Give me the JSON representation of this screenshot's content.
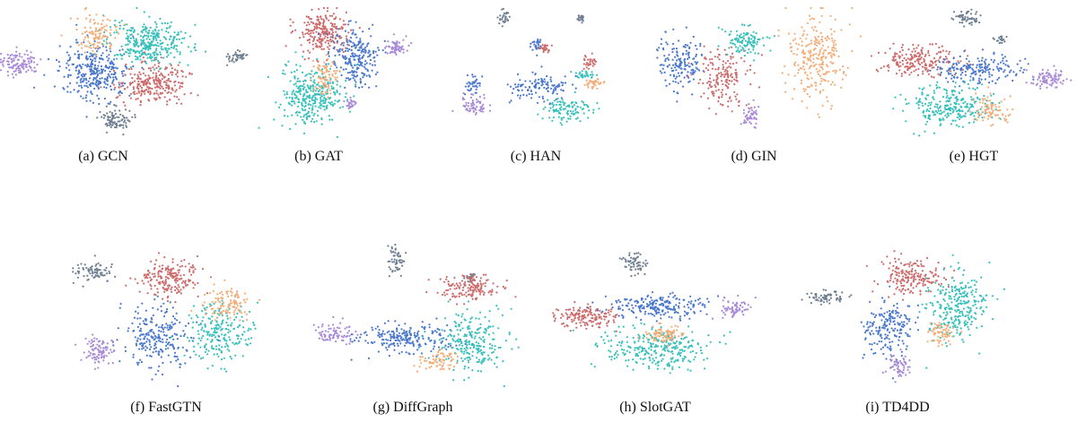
{
  "chart_data": {
    "type": "scatter",
    "colors": {
      "red": "#cd6b6b",
      "teal": "#38c0bb",
      "blue": "#4a78cc",
      "orange": "#f4ad78",
      "purple": "#a88ad6",
      "gray": "#6f7f91"
    },
    "panels": [
      {
        "caption": "(a) GCN"
      },
      {
        "caption": "(b) GAT"
      },
      {
        "caption": "(c) HAN"
      },
      {
        "caption": "(d) GIN"
      },
      {
        "caption": "(e) HGT"
      },
      {
        "caption": "(f) FastGTN"
      },
      {
        "caption": "(g) DiffGraph"
      },
      {
        "caption": "(h) SlotGAT"
      },
      {
        "caption": "(i) TD4DD"
      }
    ]
  }
}
